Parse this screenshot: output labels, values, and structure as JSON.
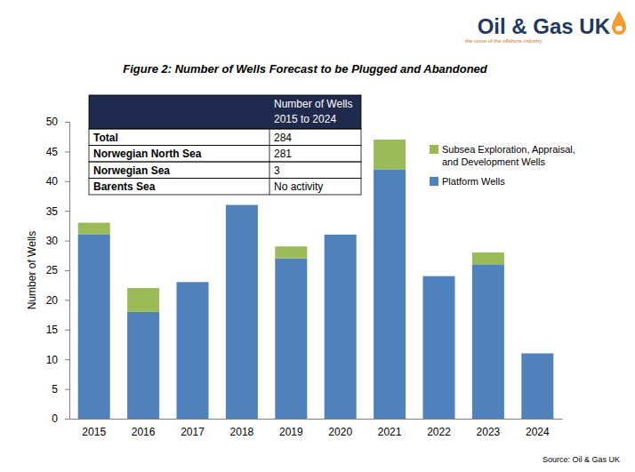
{
  "chart_data": {
    "type": "bar",
    "title": "Figure 2: Number of Wells Forecast to be Plugged and Abandoned",
    "y_label": "Number of Wells",
    "source": "Source: Oil & Gas UK",
    "logo": {
      "name": "Oil & Gas UK",
      "tagline": "the voice of the offshore industry"
    },
    "categories": [
      "2015",
      "2016",
      "2017",
      "2018",
      "2019",
      "2020",
      "2021",
      "2022",
      "2023",
      "2024"
    ],
    "series": [
      {
        "name": "Platform Wells",
        "color": "#4f81bd",
        "values": [
          31,
          18,
          23,
          36,
          27,
          31,
          42,
          24,
          26,
          11
        ]
      },
      {
        "name": "Subsea Exploration, Appraisal, and Development Wells",
        "color": "#9bbb59",
        "values": [
          2,
          4,
          0,
          0,
          2,
          0,
          5,
          0,
          2,
          0
        ]
      }
    ],
    "stacked": true,
    "legend": "upper right",
    "grid": false,
    "ylim": [
      0,
      50
    ],
    "yticks": [
      0,
      5,
      10,
      15,
      20,
      25,
      30,
      35,
      40,
      45,
      50
    ],
    "table": {
      "header": "Number of Wells 2015 to 2024",
      "rows": [
        [
          "Total",
          284
        ],
        [
          "Norwegian North Sea",
          281
        ],
        [
          "Norwegian Sea",
          3
        ],
        [
          "Barents Sea",
          "No activity"
        ]
      ]
    }
  }
}
